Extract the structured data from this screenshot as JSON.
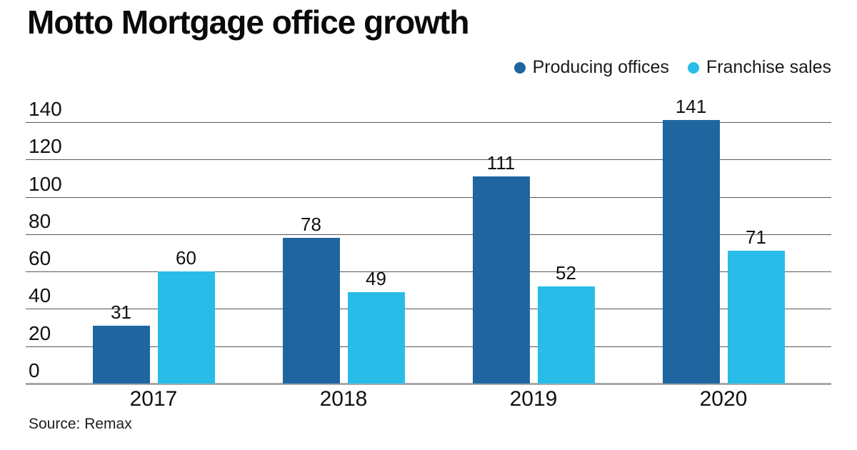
{
  "title": "Motto Mortgage office growth",
  "source": "Source: Remax",
  "colors": {
    "producing_offices": "#1f66a0",
    "franchise_sales": "#29bce8",
    "gridline": "#58585a",
    "baseline": "#a8a8a8",
    "text": "#111111"
  },
  "chart_data": {
    "type": "bar",
    "title": "Motto Mortgage office growth",
    "source": "Source: Remax",
    "categories": [
      "2017",
      "2018",
      "2019",
      "2020"
    ],
    "series": [
      {
        "name": "Producing offices",
        "color": "#1f66a0",
        "values": [
          31,
          78,
          111,
          141
        ]
      },
      {
        "name": "Franchise sales",
        "color": "#29bce8",
        "values": [
          60,
          49,
          52,
          71
        ]
      }
    ],
    "xlabel": "",
    "ylabel": "",
    "ylim": [
      0,
      140
    ],
    "y_ticks": [
      0,
      20,
      40,
      60,
      80,
      100,
      120,
      140
    ],
    "grid": true,
    "legend_position": "top-right",
    "value_labels": true
  }
}
